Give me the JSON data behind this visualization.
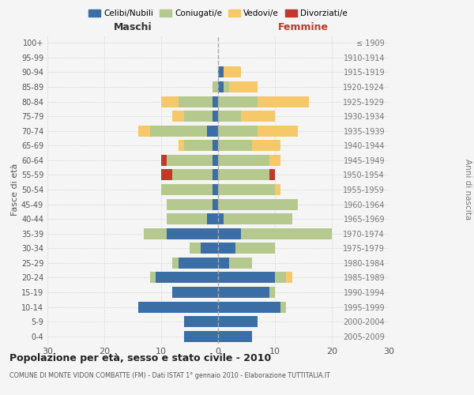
{
  "age_groups": [
    "0-4",
    "5-9",
    "10-14",
    "15-19",
    "20-24",
    "25-29",
    "30-34",
    "35-39",
    "40-44",
    "45-49",
    "50-54",
    "55-59",
    "60-64",
    "65-69",
    "70-74",
    "75-79",
    "80-84",
    "85-89",
    "90-94",
    "95-99",
    "100+"
  ],
  "birth_years": [
    "2005-2009",
    "2000-2004",
    "1995-1999",
    "1990-1994",
    "1985-1989",
    "1980-1984",
    "1975-1979",
    "1970-1974",
    "1965-1969",
    "1960-1964",
    "1955-1959",
    "1950-1954",
    "1945-1949",
    "1940-1944",
    "1935-1939",
    "1930-1934",
    "1925-1929",
    "1920-1924",
    "1915-1919",
    "1910-1914",
    "≤ 1909"
  ],
  "maschi": {
    "celibi": [
      6,
      6,
      14,
      8,
      11,
      7,
      3,
      9,
      2,
      1,
      1,
      1,
      1,
      1,
      2,
      1,
      1,
      0,
      0,
      0,
      0
    ],
    "coniugati": [
      0,
      0,
      0,
      0,
      1,
      1,
      2,
      4,
      7,
      8,
      9,
      7,
      8,
      5,
      10,
      5,
      6,
      1,
      0,
      0,
      0
    ],
    "vedovi": [
      0,
      0,
      0,
      0,
      0,
      0,
      0,
      0,
      0,
      0,
      0,
      0,
      0,
      1,
      2,
      2,
      3,
      0,
      0,
      0,
      0
    ],
    "divorziati": [
      0,
      0,
      0,
      0,
      0,
      0,
      0,
      0,
      0,
      0,
      0,
      2,
      1,
      0,
      0,
      0,
      0,
      0,
      0,
      0,
      0
    ]
  },
  "femmine": {
    "nubili": [
      6,
      7,
      11,
      9,
      10,
      2,
      3,
      4,
      1,
      0,
      0,
      0,
      0,
      0,
      0,
      0,
      0,
      1,
      1,
      0,
      0
    ],
    "coniugate": [
      0,
      0,
      1,
      1,
      2,
      4,
      7,
      16,
      12,
      14,
      10,
      9,
      9,
      6,
      7,
      4,
      7,
      1,
      0,
      0,
      0
    ],
    "vedove": [
      0,
      0,
      0,
      0,
      1,
      0,
      0,
      0,
      0,
      0,
      1,
      0,
      2,
      5,
      7,
      6,
      9,
      5,
      3,
      0,
      0
    ],
    "divorziate": [
      0,
      0,
      0,
      0,
      0,
      0,
      0,
      0,
      0,
      0,
      0,
      1,
      0,
      0,
      0,
      0,
      0,
      0,
      0,
      0,
      0
    ]
  },
  "colors": {
    "celibi": "#3a6ea5",
    "coniugati": "#b5c98e",
    "vedovi": "#f5c96a",
    "divorziati": "#c0392b"
  },
  "xlim": 30,
  "title": "Popolazione per età, sesso e stato civile - 2010",
  "subtitle": "COMUNE DI MONTE VIDON COMBATTE (FM) - Dati ISTAT 1° gennaio 2010 - Elaborazione TUTTITALIA.IT",
  "xlabel_left": "Maschi",
  "xlabel_right": "Femmine",
  "ylabel_left": "Fasce di età",
  "ylabel_right": "Anni di nascita",
  "bg_color": "#f5f5f5",
  "grid_color": "#cccccc"
}
